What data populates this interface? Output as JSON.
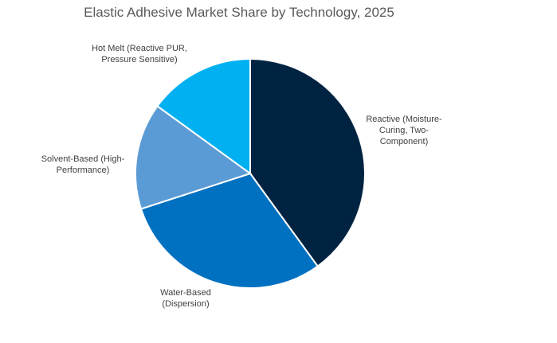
{
  "chart_data": {
    "type": "pie",
    "title": "Elastic Adhesive Market Share by Technology, 2025",
    "unit": "%",
    "start_angle": "12 o'clock, clockwise",
    "slices": [
      {
        "label": "Reactive (Moisture-Curing, Two-Component)",
        "value": 40,
        "color": "#002341"
      },
      {
        "label": "Water-Based (Dispersion)",
        "value": 30,
        "color": "#0070C0"
      },
      {
        "label": "Solvent-Based (High-Performance)",
        "value": 15,
        "color": "#5B9BD5"
      },
      {
        "label": "Hot Melt (Reactive PUR, Pressure Sensitive)",
        "value": 15,
        "color": "#00B0F0"
      }
    ],
    "legend": "none (category labels outside slices)"
  }
}
